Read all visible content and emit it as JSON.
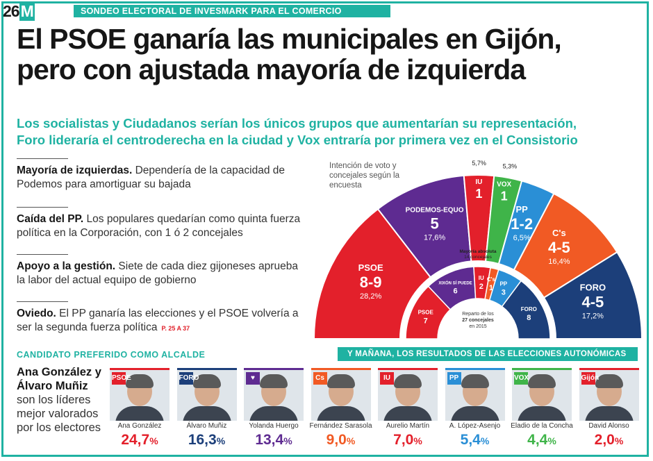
{
  "header": {
    "badge_number": "26",
    "badge_letter": "M",
    "poll_label": "SONDEO ELECTORAL DE INVESMARK PARA EL COMERCIO"
  },
  "headline": {
    "line1": "El PSOE ganaría las municipales en Gijón,",
    "line2": "pero con ajustada mayoría de izquierda"
  },
  "subheadline": {
    "line1": "Los socialistas y Ciudadanos serían los únicos grupos que aumentarían su representación,",
    "line2": "Foro lideraría el centroderecha en la ciudad y Vox entraría por primera vez en el Consistorio"
  },
  "bullets": [
    {
      "bold": "Mayoría de izquierdas.",
      "text": "Dependería de la capacidad de Podemos para amortiguar su bajada"
    },
    {
      "bold": "Caída del PP.",
      "text": "Los populares quedarían como quinta fuerza política en la Corporación, con 1 ó 2 concejales"
    },
    {
      "bold": "Apoyo a la gestión.",
      "text": "Siete de cada diez gijoneses aprueba la labor del actual equipo de gobierno"
    },
    {
      "bold": "Oviedo.",
      "text": "El PP ganaría las elecciones y el PSOE volvería a ser la segunda fuerza política",
      "ref": "P. 25 A 37"
    }
  ],
  "chart_data": {
    "type": "semicircle",
    "note": "Intención de voto y concejales según la encuesta",
    "majority_label": [
      "Mayoría absoluta",
      "14 concejales"
    ],
    "center_label": [
      "Reparto de los",
      "27 concejales",
      "en 2015"
    ],
    "outer": [
      {
        "party": "PSOE",
        "seats": "8-9",
        "pct": "28,2%",
        "pct_value": 28.2,
        "color": "#e3202b"
      },
      {
        "party": "PODEMOS-EQUO",
        "seats": "5",
        "pct": "17,6%",
        "pct_value": 17.6,
        "color": "#5e2b91"
      },
      {
        "party": "IU",
        "seats": "1",
        "pct": "5,7%",
        "pct_value": 5.7,
        "color": "#e3202b"
      },
      {
        "party": "VOX",
        "seats": "1",
        "pct": "5,3%",
        "pct_value": 5.3,
        "color": "#3fb449"
      },
      {
        "party": "PP",
        "seats": "1-2",
        "pct": "6,5%",
        "pct_value": 6.5,
        "color": "#2a8fd6"
      },
      {
        "party": "C's",
        "seats": "4-5",
        "pct": "16,4%",
        "pct_value": 16.4,
        "color": "#f15a24"
      },
      {
        "party": "FORO",
        "seats": "4-5",
        "pct": "17,2%",
        "pct_value": 17.2,
        "color": "#1c3f7a"
      }
    ],
    "inner": [
      {
        "party": "PSOE",
        "seats": 7,
        "color": "#e3202b"
      },
      {
        "party": "XIXÓN SÍ PUEDE",
        "seats": 6,
        "color": "#5e2b91"
      },
      {
        "party": "IU",
        "seats": 2,
        "color": "#e3202b"
      },
      {
        "party": "C's",
        "seats": 1,
        "color": "#f15a24"
      },
      {
        "party": "PP",
        "seats": 3,
        "color": "#2a8fd6"
      },
      {
        "party": "FORO",
        "seats": 8,
        "color": "#1c3f7a"
      }
    ]
  },
  "candidates_section": {
    "title": "CANDIDATO PREFERIDO COMO ALCALDE",
    "tomorrow": "Y MAÑANA, LOS RESULTADOS DE LAS ELECCIONES AUTONÓMICAS",
    "summary_bold": "Ana González y Álvaro Muñiz",
    "summary_text": "son los líderes mejor valorados por los electores",
    "items": [
      {
        "name": "Ana González",
        "pct": "24,7",
        "color": "#e3202b",
        "logo": "PSOE"
      },
      {
        "name": "Álvaro Muñiz",
        "pct": "16,3",
        "color": "#1c3f7a",
        "logo": "FORO"
      },
      {
        "name": "Yolanda Huergo",
        "pct": "13,4",
        "color": "#5e2b91",
        "logo": "♥"
      },
      {
        "name": "Fernández Sarasola",
        "pct": "9,0",
        "color": "#f15a24",
        "logo": "Cs"
      },
      {
        "name": "Aurelio Martín",
        "pct": "7,0",
        "color": "#e3202b",
        "logo": "IU"
      },
      {
        "name": "A. López-Asenjo",
        "pct": "5,4",
        "color": "#2a8fd6",
        "logo": "PP"
      },
      {
        "name": "Eladio de la Concha",
        "pct": "4,4",
        "color": "#3fb449",
        "logo": "VOX"
      },
      {
        "name": "David Alonso",
        "pct": "2,0",
        "color": "#e3202b",
        "logo": "Gijón"
      }
    ],
    "pct_suffix": "%"
  }
}
